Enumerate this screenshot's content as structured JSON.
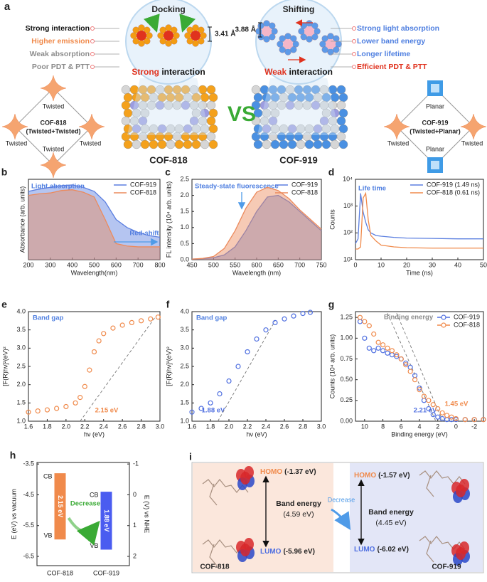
{
  "diagram_a": {
    "panel": "a",
    "left": {
      "title": "Docking",
      "distance": "3.41 Å",
      "properties": [
        {
          "text": "Strong interaction",
          "color": "#111111"
        },
        {
          "text": "Higher emission",
          "color": "#f08a4b"
        },
        {
          "text": "Weak absorption",
          "color": "#8c8c8c"
        },
        {
          "text": "Poor PDT & PTT",
          "color": "#8c8c8c"
        }
      ],
      "interaction": [
        "Strong",
        " interaction"
      ],
      "name": "COF-818",
      "node": {
        "label": "COF-818",
        "sub": "(Twisted+Twisted)",
        "edges": [
          "Twisted",
          "Twisted",
          "Twisted",
          "Twisted"
        ]
      }
    },
    "vs": "VS",
    "right": {
      "title": "Shifting",
      "distance": "3.88 Å",
      "properties": [
        {
          "text": "Strong light absorption",
          "color": "#4f7fe0"
        },
        {
          "text": "Lower band energy",
          "color": "#4f7fe0"
        },
        {
          "text": "Longer lifetime",
          "color": "#4f7fe0"
        },
        {
          "text": "Efficient PDT & PTT",
          "color": "#e0321e"
        }
      ],
      "interaction": [
        "Weak",
        " interaction"
      ],
      "name": "COF-919",
      "node": {
        "label": "COF-919",
        "sub": "(Twisted+Planar)",
        "edges": [
          "Planar",
          "Twisted",
          "Twisted",
          "Planar"
        ]
      }
    }
  },
  "chart_data": [
    {
      "type": "area",
      "panel": "b",
      "x_label": "Wavelength(nm)",
      "y_label": "Absorbance (arb. units)",
      "x": [
        200,
        250,
        300,
        350,
        400,
        450,
        500,
        550,
        600,
        650,
        700,
        750,
        800
      ],
      "series": [
        {
          "name": "COF-919",
          "color": "#5b7fe0",
          "values": [
            0.85,
            0.88,
            0.9,
            0.92,
            0.93,
            0.9,
            0.85,
            0.72,
            0.5,
            0.4,
            0.34,
            0.3,
            0.28
          ]
        },
        {
          "name": "COF-818",
          "color": "#ec8a5c",
          "values": [
            0.8,
            0.82,
            0.83,
            0.86,
            0.87,
            0.84,
            0.78,
            0.5,
            0.2,
            0.17,
            0.16,
            0.16,
            0.16
          ]
        }
      ],
      "xlim": [
        200,
        800
      ],
      "ylim": [
        0,
        1
      ],
      "xticks": [
        200,
        300,
        400,
        500,
        600,
        700,
        800
      ],
      "legend": "upper right",
      "annotations": [
        {
          "text": "Light absorption",
          "color": "#4f7fe0"
        },
        {
          "text": "Red-shift",
          "color": "#4f7fe0"
        }
      ]
    },
    {
      "type": "area",
      "panel": "c",
      "x_label": "Wavelength (nm)",
      "y_label": "FL intensity (10⁴ arb. units)",
      "x": [
        450,
        475,
        500,
        525,
        550,
        575,
        600,
        625,
        650,
        675,
        700,
        725,
        750
      ],
      "series": [
        {
          "name": "COF-919",
          "color": "#5b7fe0",
          "values": [
            0.02,
            0.03,
            0.06,
            0.15,
            0.4,
            0.9,
            1.5,
            1.95,
            2.0,
            1.8,
            1.5,
            1.2,
            0.9
          ]
        },
        {
          "name": "COF-818",
          "color": "#ec8a5c",
          "values": [
            0.02,
            0.04,
            0.1,
            0.35,
            0.9,
            1.6,
            2.1,
            2.25,
            2.15,
            1.9,
            1.55,
            1.25,
            0.95
          ]
        }
      ],
      "xlim": [
        450,
        750
      ],
      "ylim": [
        0,
        2.5
      ],
      "xticks": [
        450,
        500,
        550,
        600,
        650,
        700,
        750
      ],
      "yticks": [
        {
          "value": 0,
          "label": "0.0"
        },
        0.5,
        {
          "value": 1,
          "label": "1.0"
        },
        1.5,
        {
          "value": 2,
          "label": "2.0"
        },
        2.5
      ],
      "legend": "upper right",
      "annotations": [
        {
          "text": "Steady-state fluorescence",
          "color": "#4f7fe0"
        }
      ]
    },
    {
      "type": "line",
      "panel": "d",
      "x_label": "Time (ns)",
      "y_label": "Counts",
      "x": [
        0,
        1,
        2,
        3,
        4,
        5,
        6,
        8,
        10,
        15,
        20,
        30,
        40,
        50
      ],
      "series": [
        {
          "name": "COF-919 (1.49 ns)",
          "color": "#5b7fe0",
          "values": [
            40,
            60,
            3000,
            600,
            250,
            130,
            100,
            80,
            75,
            68,
            64,
            62,
            60,
            60
          ]
        },
        {
          "name": "COF-818 (0.61 ns)",
          "color": "#f08a4b",
          "values": [
            25,
            25,
            30,
            2000,
            3000,
            300,
            80,
            50,
            35,
            30,
            28,
            27,
            27,
            27
          ]
        }
      ],
      "xlim": [
        0,
        50
      ],
      "ylim": [
        10,
        10000
      ],
      "log_y": true,
      "xticks": [
        0,
        10,
        20,
        30,
        40,
        50
      ],
      "yticks": [
        {
          "value": 10,
          "label": "10¹"
        },
        {
          "value": 100,
          "label": "10²"
        },
        {
          "value": 1000,
          "label": "10³"
        },
        {
          "value": 10000,
          "label": "10⁴"
        }
      ],
      "legend": "upper right",
      "annotations": [
        {
          "text": "Life time",
          "color": "#4f7fe0"
        }
      ]
    },
    {
      "type": "scatter",
      "panel": "e",
      "marker": "open-circle",
      "x_label": "hν (eV)",
      "y_label": "[F(R)hν]²(eV)²",
      "x": [
        1.6,
        1.7,
        1.8,
        1.9,
        2.0,
        2.1,
        2.15,
        2.2,
        2.25,
        2.3,
        2.35,
        2.4,
        2.5,
        2.6,
        2.7,
        2.8,
        2.9,
        2.98
      ],
      "series": [
        {
          "color": "#f08a4b",
          "values": [
            1.25,
            1.28,
            1.31,
            1.35,
            1.4,
            1.5,
            1.65,
            1.95,
            2.4,
            2.9,
            3.2,
            3.4,
            3.55,
            3.63,
            3.7,
            3.75,
            3.8,
            3.85
          ]
        }
      ],
      "fits": [
        {
          "x": [
            2.15,
            2.95
          ],
          "y": [
            1.0,
            3.85
          ]
        }
      ],
      "xlim": [
        1.6,
        3.0
      ],
      "ylim": [
        1.0,
        4.0
      ],
      "xticks": [
        1.6,
        1.8,
        {
          "value": 2,
          "label": "2.0"
        },
        2.2,
        2.4,
        2.6,
        2.8,
        {
          "value": 3,
          "label": "3.0"
        }
      ],
      "yticks": [
        {
          "value": 1,
          "label": "1.0"
        },
        1.5,
        {
          "value": 2,
          "label": "2.0"
        },
        2.5,
        {
          "value": 3,
          "label": "3.0"
        },
        3.5,
        {
          "value": 4,
          "label": "4.0"
        }
      ],
      "annotations": [
        {
          "text": "Band gap",
          "color": "#4f7fe0"
        },
        {
          "text": "2.15 eV",
          "color": "#f08a4b"
        }
      ]
    },
    {
      "type": "scatter",
      "panel": "f",
      "marker": "open-circle",
      "x_label": "hν (eV)",
      "y_label": "[F(R)hν]²(eV)²",
      "x": [
        1.6,
        1.7,
        1.8,
        1.9,
        2.0,
        2.1,
        2.2,
        2.3,
        2.4,
        2.5,
        2.6,
        2.7,
        2.8,
        2.88
      ],
      "series": [
        {
          "color": "#4f6fe0",
          "values": [
            1.25,
            1.35,
            1.5,
            1.75,
            2.1,
            2.5,
            2.9,
            3.25,
            3.5,
            3.7,
            3.8,
            3.88,
            3.95,
            3.98
          ]
        }
      ],
      "fits": [
        {
          "x": [
            1.88,
            2.5
          ],
          "y": [
            1.0,
            3.75
          ]
        }
      ],
      "xlim": [
        1.6,
        3.0
      ],
      "ylim": [
        1.0,
        4.0
      ],
      "xticks": [
        1.6,
        1.8,
        {
          "value": 2,
          "label": "2.0"
        },
        2.2,
        2.4,
        2.6,
        2.8,
        {
          "value": 3,
          "label": "3.0"
        }
      ],
      "yticks": [
        {
          "value": 1,
          "label": "1.0"
        },
        1.5,
        {
          "value": 2,
          "label": "2.0"
        },
        2.5,
        {
          "value": 3,
          "label": "3.0"
        },
        3.5,
        {
          "value": 4,
          "label": "4.0"
        }
      ],
      "annotations": [
        {
          "text": "Band gap",
          "color": "#4f7fe0"
        },
        {
          "text": "1.88 eV",
          "color": "#4f6fe0"
        }
      ]
    },
    {
      "type": "scatter",
      "panel": "g",
      "marker": "open-circle",
      "x_label": "Binding energy (eV)",
      "y_label": "Counts (10⁴ arb. units)",
      "x": [
        10.5,
        10,
        9.5,
        9,
        8.5,
        8,
        7.5,
        7,
        6.5,
        6,
        5.5,
        5,
        4.5,
        4,
        3.5,
        3,
        2.5,
        2,
        1.5,
        1,
        0.5,
        0,
        -1,
        -2,
        -3
      ],
      "series": [
        {
          "name": "COF-919",
          "color": "#4f6fe0",
          "values": [
            1.2,
            1.0,
            0.88,
            0.85,
            0.88,
            0.85,
            0.82,
            0.8,
            0.78,
            0.75,
            0.7,
            0.65,
            0.55,
            0.4,
            0.25,
            0.15,
            0.08,
            0.05,
            0.03,
            0.02,
            0.02,
            0.02,
            0.02,
            0.02,
            0.02
          ]
        },
        {
          "name": "COF-818",
          "color": "#f08a4b",
          "values": [
            1.25,
            1.2,
            1.15,
            1.05,
            0.95,
            0.92,
            0.88,
            0.85,
            0.8,
            0.75,
            0.68,
            0.6,
            0.5,
            0.38,
            0.3,
            0.25,
            0.2,
            0.15,
            0.1,
            0.07,
            0.05,
            0.03,
            0.02,
            0.02,
            0.02
          ]
        }
      ],
      "fits": [
        {
          "x": [
            7.5,
            2.21
          ],
          "y": [
            1.3,
            0
          ]
        },
        {
          "x": [
            6.5,
            1.45
          ],
          "y": [
            1.3,
            0
          ]
        }
      ],
      "xlim": [
        11,
        -3
      ],
      "ylim": [
        0,
        1.32
      ],
      "xticks": [
        10,
        8,
        6,
        4,
        2,
        0,
        -2
      ],
      "yticks": [
        {
          "value": 0,
          "label": "0.00"
        },
        0.25,
        {
          "value": 0.5,
          "label": "0.50"
        },
        0.75,
        {
          "value": 1,
          "label": "1.00"
        },
        1.25
      ],
      "legend": "upper right",
      "annotations": [
        {
          "text": "Binding energy",
          "color": "#8c8c8c"
        },
        {
          "text": "2.21 eV",
          "color": "#4f6fe0"
        },
        {
          "text": "1.45 eV",
          "color": "#f08a4b"
        }
      ]
    },
    {
      "type": "floating_bar",
      "panel": "h",
      "y_label": "E (eV) vs vacuum",
      "y2_label": "E (V) vs NHE",
      "categories": [
        "COF-818",
        "COF-919"
      ],
      "cb": [
        -3.8,
        -4.4
      ],
      "vb": [
        -5.95,
        -6.28
      ],
      "colors": [
        "#f08a4b",
        "#4a5cf0"
      ],
      "bar_labels": [
        "2.15 eV",
        "1.88 eV"
      ],
      "band_edge_labels": [
        "CB",
        "VB"
      ],
      "ylim": [
        -6.8,
        -3.45
      ],
      "yticks": [
        -3.5,
        -4.5,
        -5.5,
        -6.5
      ],
      "y2lim": [
        2.3,
        -1.05
      ],
      "y2ticks": [
        -1,
        0,
        1,
        2
      ],
      "annotations": [
        {
          "text": "Decrease",
          "color": "#3aaa35"
        }
      ]
    }
  ],
  "panel_i": {
    "panel": "i",
    "left": {
      "homo": "HOMO",
      "homo_energy": "(-1.37 eV)",
      "gap_label": "Band energy",
      "gap_energy": "(4.59 eV)",
      "lumo": "LUMO",
      "lumo_energy": "(-5.96 eV)",
      "name": "COF-818"
    },
    "arrow": "Decrease",
    "right": {
      "homo": "HOMO",
      "homo_energy": "(-1.57 eV)",
      "gap_label": "Band energy",
      "gap_energy": "(4.45 eV)",
      "lumo": "LUMO",
      "lumo_energy": "(-6.02 eV)",
      "name": "COF-919"
    }
  }
}
